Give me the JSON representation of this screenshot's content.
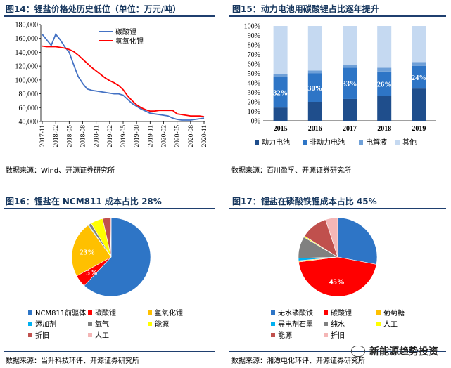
{
  "fig14": {
    "title": "图14：锂盐价格处历史低位（单位：万元/吨）",
    "source": "数据来源：Wind、开源证券研究所",
    "legend": [
      "碳酸锂",
      "氢氧化锂"
    ],
    "colors": [
      "#4472c4",
      "#ff0000"
    ]
  },
  "fig15": {
    "title": "图15：动力电池用碳酸锂占比逐年提升",
    "source": "数据来源：百川盈孚、开源证券研究所",
    "legend": [
      "动力电池",
      "非动力电池",
      "电解液",
      "其他"
    ],
    "colors": [
      "#1f4e8c",
      "#2e75c6",
      "#6fa0d8",
      "#c5d9f1"
    ]
  },
  "fig16": {
    "title": "图16：锂盐在 NCM811 成本占比 28%",
    "source": "数据来源：当升科技环评、开源证券研究所",
    "legend": [
      "NCM811前驱体",
      "碳酸锂",
      "氢氧化锂",
      "添加剂",
      "氧气",
      "能源",
      "折旧",
      "人工"
    ],
    "colors": [
      "#2e75c6",
      "#ff0000",
      "#ffc000",
      "#00b0f0",
      "#808080",
      "#ffff00",
      "#c0504d",
      "#f4b6b6"
    ]
  },
  "fig17": {
    "title": "图17：锂盐在磷酸铁锂成本占比 45%",
    "source": "数据来源：湘潭电化环评、开源证券研究所",
    "legend": [
      "无水磷酸铁",
      "碳酸锂",
      "葡萄糖",
      "导电剂石墨",
      "纯水",
      "人工",
      "能源",
      "折旧"
    ],
    "colors": [
      "#2e75c6",
      "#ff0000",
      "#ffc000",
      "#00b0f0",
      "#808080",
      "#ffff00",
      "#c0504d",
      "#f4b6b6"
    ]
  },
  "watermark": "新能源趋势投资",
  "chart_data": [
    {
      "type": "line",
      "title": "图14：锂盐价格处历史低位（单位：万元/吨）",
      "x": [
        "2017-11",
        "2017-12",
        "2018-01",
        "2018-02",
        "2018-03",
        "2018-04",
        "2018-05",
        "2018-06",
        "2018-07",
        "2018-08",
        "2018-09",
        "2018-10",
        "2018-11",
        "2018-12",
        "2019-01",
        "2019-02",
        "2019-03",
        "2019-04",
        "2019-05",
        "2019-06",
        "2019-07",
        "2019-08",
        "2019-09",
        "2019-10",
        "2019-11",
        "2019-12",
        "2020-01",
        "2020-02",
        "2020-03",
        "2020-04",
        "2020-05",
        "2020-06",
        "2020-07",
        "2020-08",
        "2020-09",
        "2020-10",
        "2020-11"
      ],
      "xticks": [
        "2017-11",
        "2018-02",
        "2018-05",
        "2018-08",
        "2018-11",
        "2019-02",
        "2019-05",
        "2019-08",
        "2019-11",
        "2020-02",
        "2020-05",
        "2020-08",
        "2020-11"
      ],
      "ylim": [
        40000,
        180000
      ],
      "yticks": [
        "40,000",
        "60,000",
        "80,000",
        "100,000",
        "120,000",
        "140,000",
        "160,000",
        "180,000"
      ],
      "series": [
        {
          "name": "碳酸锂",
          "values": [
            166000,
            158000,
            150000,
            166000,
            158000,
            148000,
            140000,
            122000,
            105000,
            95000,
            87000,
            85000,
            84000,
            83000,
            82000,
            81000,
            80000,
            80000,
            78000,
            72000,
            66000,
            62000,
            58000,
            55000,
            52000,
            51000,
            50000,
            49000,
            48000,
            45000,
            43000,
            42000,
            42000,
            42000,
            43000,
            44000,
            45000
          ]
        },
        {
          "name": "氢氧化锂",
          "values": [
            149000,
            148000,
            148000,
            148000,
            147000,
            146000,
            144000,
            141000,
            136000,
            130000,
            124000,
            118000,
            113000,
            108000,
            103000,
            99000,
            96000,
            92000,
            86000,
            77000,
            70000,
            64000,
            60000,
            57000,
            55000,
            55000,
            56000,
            56000,
            56000,
            56000,
            51000,
            50000,
            49000,
            48000,
            48000,
            48000,
            47000
          ]
        }
      ]
    },
    {
      "type": "bar",
      "title": "图15：动力电池用碳酸锂占比逐年提升",
      "categories": [
        "2015",
        "2016",
        "2017",
        "2018",
        "2019"
      ],
      "ylim": [
        0,
        100
      ],
      "yticks": [
        "0%",
        "10%",
        "20%",
        "30%",
        "40%",
        "50%",
        "60%",
        "70%",
        "80%",
        "90%",
        "100%"
      ],
      "stacked": true,
      "series": [
        {
          "name": "动力电池",
          "values": [
            14,
            20,
            23,
            26,
            34
          ]
        },
        {
          "name": "非动力电池",
          "values": [
            32,
            30,
            33,
            26,
            24
          ]
        },
        {
          "name": "电解液",
          "values": [
            3,
            3,
            3,
            4,
            4
          ]
        },
        {
          "name": "其他",
          "values": [
            51,
            47,
            41,
            44,
            38
          ]
        }
      ],
      "data_labels": [
        "32%",
        "30%",
        "33%",
        "26%",
        "24%"
      ]
    },
    {
      "type": "pie",
      "title": "图16：锂盐在 NCM811 成本占比 28%",
      "labels": [
        "NCM811前驱体",
        "碳酸锂",
        "氢氧化锂",
        "添加剂",
        "氧气",
        "能源",
        "折旧",
        "人工"
      ],
      "values": [
        62,
        5,
        23,
        0.3,
        1.2,
        5,
        3,
        0.5
      ],
      "data_labels": [
        "",
        "5%",
        "23%",
        "",
        "",
        "",
        "",
        ""
      ]
    },
    {
      "type": "pie",
      "title": "图17：锂盐在磷酸铁锂成本占比 45%",
      "labels": [
        "无水磷酸铁",
        "碳酸锂",
        "葡萄糖",
        "导电剂石墨",
        "纯水",
        "人工",
        "能源",
        "折旧"
      ],
      "values": [
        28,
        45,
        0.5,
        1,
        9,
        0.5,
        11,
        5
      ],
      "data_labels": [
        "",
        "45%",
        "",
        "",
        "",
        "",
        "",
        ""
      ]
    }
  ]
}
